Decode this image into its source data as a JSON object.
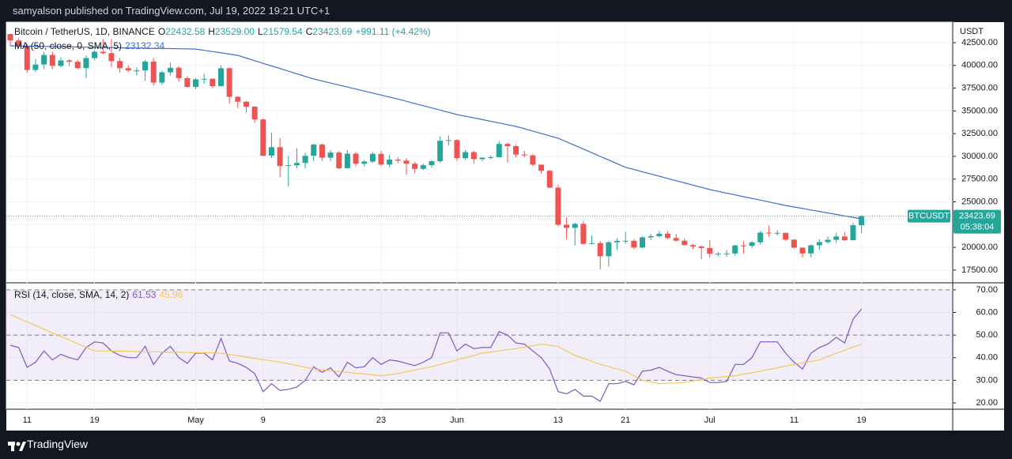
{
  "header": {
    "publisher": "samyalson published on TradingView.com, Jul 19, 2022 19:21 UTC+1"
  },
  "footer": {
    "brand": "TradingView"
  },
  "chart_data": [
    {
      "type": "candlestick",
      "title": "Bitcoin / TetherUS, 1D, BINANCE",
      "ohlc_legend": [
        {
          "label": "O",
          "text": "22432.58"
        },
        {
          "label": "H",
          "text": "23529.00"
        },
        {
          "label": "L",
          "text": "21579.54"
        },
        {
          "label": "C",
          "text": "23423.69"
        }
      ],
      "change": "+991.11 (+4.42%)",
      "currency": "USDT",
      "categories": [
        null,
        null,
        "11",
        null,
        null,
        null,
        null,
        null,
        null,
        null,
        "19",
        null,
        null,
        null,
        null,
        null,
        null,
        null,
        null,
        null,
        null,
        null,
        "May",
        null,
        null,
        null,
        null,
        null,
        null,
        null,
        "9",
        null,
        null,
        null,
        null,
        null,
        null,
        null,
        null,
        null,
        null,
        null,
        null,
        null,
        "23",
        null,
        null,
        null,
        null,
        null,
        null,
        null,
        null,
        "Jun",
        null,
        null,
        null,
        null,
        null,
        null,
        null,
        null,
        null,
        null,
        null,
        "13",
        null,
        null,
        null,
        null,
        null,
        null,
        null,
        "21",
        null,
        null,
        null,
        null,
        null,
        null,
        null,
        null,
        null,
        "Jul",
        null,
        null,
        null,
        null,
        null,
        null,
        null,
        null,
        null,
        "11",
        null,
        null,
        null,
        null,
        null,
        null,
        null,
        "19"
      ],
      "open": [
        43450,
        42750,
        42150,
        39500,
        40100,
        41150,
        39950,
        40550,
        40400,
        39700,
        40800,
        41500,
        41350,
        40480,
        39700,
        39450,
        39450,
        40430,
        38110,
        39240,
        39740,
        38600,
        37630,
        38470,
        38530,
        37720,
        39690,
        36550,
        36010,
        35470,
        34060,
        30080,
        31010,
        28940,
        29030,
        29280,
        30070,
        31300,
        29860,
        30420,
        28700,
        30300,
        29190,
        29430,
        30280,
        29100,
        29650,
        29540,
        29190,
        28630,
        29030,
        29470,
        31720,
        31790,
        29800,
        30470,
        29700,
        29860,
        29910,
        31370,
        31130,
        30200,
        30110,
        29090,
        28420,
        26570,
        22480,
        22140,
        22580,
        20380,
        20470,
        19020,
        20560,
        20710,
        20720,
        19980,
        21100,
        21230,
        21500,
        21030,
        20730,
        20250,
        20100,
        19930,
        19290,
        19300,
        19330,
        20210,
        20170,
        20550,
        21620,
        21590,
        21590,
        20850,
        19960,
        19330,
        20230,
        20580,
        20830,
        21190,
        20780,
        22432.58
      ],
      "high": [
        43500,
        43000,
        42400,
        40700,
        41500,
        41500,
        40900,
        40700,
        40600,
        41100,
        41700,
        42900,
        42900,
        40800,
        40000,
        39800,
        40600,
        40800,
        39400,
        40300,
        39900,
        38800,
        38600,
        39100,
        38600,
        40000,
        39800,
        36600,
        36100,
        35500,
        34200,
        32600,
        32000,
        30000,
        30900,
        30400,
        31400,
        31400,
        30700,
        30600,
        30700,
        30500,
        29600,
        30500,
        30600,
        30200,
        29900,
        29800,
        29400,
        29200,
        29600,
        32200,
        32300,
        31900,
        30700,
        30600,
        29900,
        30100,
        31700,
        31500,
        31300,
        30600,
        30300,
        29100,
        28500,
        26900,
        23300,
        22700,
        22900,
        21300,
        20700,
        20700,
        21000,
        21700,
        20900,
        21200,
        21500,
        21800,
        21800,
        21500,
        21000,
        20400,
        20200,
        20800,
        19500,
        19700,
        20300,
        20700,
        20700,
        21800,
        22400,
        21900,
        21600,
        20900,
        20000,
        20300,
        20900,
        21200,
        21600,
        21700,
        22700,
        23529
      ],
      "low": [
        42100,
        41900,
        39200,
        39250,
        39600,
        39600,
        39800,
        39900,
        39600,
        38600,
        40600,
        41200,
        39800,
        39200,
        39300,
        38900,
        38300,
        37800,
        37900,
        38900,
        38200,
        37600,
        37400,
        38000,
        37500,
        37700,
        35800,
        35300,
        34800,
        33700,
        30000,
        29800,
        27700,
        26700,
        28700,
        28700,
        29500,
        29500,
        29500,
        28600,
        28700,
        28900,
        28900,
        29300,
        28900,
        28800,
        29300,
        28000,
        28200,
        28500,
        28800,
        29300,
        31200,
        29500,
        29600,
        29200,
        29500,
        29700,
        29900,
        29300,
        29900,
        29900,
        28900,
        28100,
        26500,
        22300,
        20900,
        20200,
        20300,
        20300,
        17600,
        17900,
        19700,
        20400,
        19800,
        19900,
        20800,
        21100,
        20900,
        20600,
        20200,
        19800,
        18700,
        18900,
        19000,
        19000,
        19100,
        19300,
        19900,
        20300,
        21200,
        21300,
        20700,
        19900,
        18900,
        18900,
        19700,
        20400,
        20500,
        20700,
        20800,
        21579.54
      ],
      "close": [
        42750,
        42150,
        39500,
        40100,
        41150,
        39950,
        40550,
        40400,
        39700,
        40800,
        41500,
        41350,
        40480,
        39700,
        39450,
        39450,
        40430,
        38110,
        39240,
        39740,
        38600,
        37630,
        38470,
        38530,
        37720,
        39690,
        36550,
        36010,
        35470,
        34060,
        30080,
        31010,
        28940,
        29030,
        29280,
        30070,
        31300,
        29860,
        30420,
        28700,
        30300,
        29190,
        29430,
        30280,
        29100,
        29650,
        29540,
        29190,
        28630,
        29030,
        29470,
        31720,
        31790,
        29800,
        30470,
        29700,
        29860,
        29910,
        31370,
        31130,
        30200,
        30110,
        29090,
        28420,
        26570,
        22480,
        22140,
        22580,
        20380,
        20470,
        19020,
        20560,
        20710,
        20720,
        19980,
        21100,
        21230,
        21500,
        21030,
        20730,
        20250,
        20100,
        19930,
        19290,
        19300,
        19330,
        20210,
        20170,
        20550,
        21620,
        21590,
        21590,
        20850,
        19960,
        19330,
        20230,
        20580,
        20830,
        21190,
        20780,
        22432.58,
        23423.69
      ],
      "up_color": "#26a69a",
      "down_color": "#ef5350",
      "series": [
        {
          "name": "MA (50, close, 0, SMA, 5)",
          "value_label": "23132.34",
          "color": "#3f6fc9",
          "values": [
            42150,
            42130,
            42120,
            42100,
            42090,
            42070,
            42050,
            42040,
            42020,
            42010,
            41990,
            41970,
            41960,
            41940,
            41930,
            41910,
            41890,
            41880,
            41860,
            41850,
            41830,
            41820,
            41800,
            41660,
            41520,
            41380,
            41240,
            41100,
            40810,
            40520,
            40230,
            39940,
            39660,
            39370,
            39080,
            38790,
            38500,
            38280,
            38060,
            37840,
            37620,
            37400,
            37180,
            36960,
            36740,
            36520,
            36300,
            36060,
            35810,
            35570,
            35330,
            35090,
            34840,
            34600,
            34410,
            34230,
            34040,
            33860,
            33670,
            33490,
            33300,
            33040,
            32780,
            32520,
            32260,
            32000,
            31600,
            31200,
            30800,
            30400,
            30000,
            29600,
            29200,
            28800,
            28560,
            28310,
            28070,
            27820,
            27580,
            27330,
            27090,
            26840,
            26600,
            26350,
            26160,
            25960,
            25770,
            25570,
            25380,
            25190,
            24990,
            24800,
            24600,
            24440,
            24270,
            24110,
            23950,
            23780,
            23620,
            23460,
            23300,
            23132.34
          ]
        }
      ],
      "last_price": {
        "symbol": "BTCUSDT",
        "label": "23423.69",
        "countdown": "05:38:04"
      },
      "ylim": [
        16100,
        44760
      ],
      "yticks": [
        {
          "value": 17500,
          "label": "17500.00"
        },
        {
          "value": 20000,
          "label": "20000.00"
        },
        {
          "value": 22500,
          "label": "22500.00"
        },
        {
          "value": 25000,
          "label": "25000.00"
        },
        {
          "value": 27500,
          "label": "27500.00"
        },
        {
          "value": 30000,
          "label": "30000.00"
        },
        {
          "value": 32500,
          "label": "32500.00"
        },
        {
          "value": 35000,
          "label": "35000.00"
        },
        {
          "value": 37500,
          "label": "37500.00"
        },
        {
          "value": 40000,
          "label": "40000.00"
        },
        {
          "value": 42500,
          "label": "42500.00"
        }
      ],
      "grid": true
    },
    {
      "type": "line",
      "title": "RSI (14, close, SMA, 14, 2)",
      "series": [
        {
          "value_label": "61.53",
          "color": "#7e57c2",
          "values": [
            45.5,
            44.5,
            35.7,
            38,
            43,
            39,
            41.5,
            40,
            39,
            44.5,
            47,
            46.5,
            43,
            41,
            40,
            40,
            45,
            37,
            42,
            45,
            40,
            37.5,
            42,
            42,
            39,
            48.5,
            38.5,
            37.5,
            35.7,
            33,
            25,
            28.5,
            25.5,
            26,
            27,
            30,
            36,
            33.5,
            35.5,
            31.5,
            38,
            35.5,
            36,
            40,
            37,
            39,
            38.5,
            37.5,
            36.5,
            38,
            40,
            51,
            51,
            43,
            46,
            44,
            44.5,
            44.5,
            51.5,
            50,
            46.5,
            46,
            43,
            40,
            35,
            25,
            24,
            26,
            23,
            23,
            20.7,
            28.5,
            28.5,
            29.5,
            28,
            34,
            34.5,
            35.7,
            34,
            32.5,
            32,
            31.5,
            31,
            29,
            29,
            29.5,
            37,
            37,
            40,
            47,
            47,
            47,
            42,
            38,
            35,
            42,
            44.5,
            46,
            49,
            46.5,
            57,
            61.53
          ]
        },
        {
          "value_label": "45.96",
          "color": "#f5c65a",
          "values": [
            59,
            57.4,
            55.8,
            54.2,
            52.6,
            51,
            49.4,
            47.8,
            46.2,
            44.6,
            43,
            43,
            42.9,
            42.9,
            42.8,
            42.7,
            42.6,
            42.6,
            42.5,
            42.4,
            42.4,
            42.3,
            42.2,
            42.1,
            42.1,
            42,
            41.4,
            40.9,
            40.3,
            39.7,
            39.1,
            38.6,
            38,
            37.3,
            36.5,
            35.8,
            35,
            34.6,
            34.3,
            33.9,
            33.5,
            33.1,
            32.8,
            32.4,
            32,
            32.5,
            33,
            33.8,
            34.5,
            35.3,
            36,
            37,
            38,
            39,
            40,
            41,
            42,
            42.5,
            43,
            43.5,
            44,
            44.7,
            45.3,
            46,
            45.5,
            45,
            43,
            41,
            39.7,
            38.3,
            37,
            36,
            35,
            34,
            32,
            30,
            29.2,
            28.5,
            28.7,
            28.8,
            29,
            29.7,
            30.3,
            31,
            31.3,
            31.7,
            32,
            32.7,
            33.3,
            34,
            34.8,
            35.5,
            36.3,
            37,
            37.7,
            38.3,
            39,
            40.5,
            42,
            43.3,
            44.7,
            45.96
          ]
        }
      ],
      "bands": {
        "upper": 70,
        "middle": 50,
        "lower": 30
      },
      "ylim": [
        17.2,
        73.1
      ],
      "yticks": [
        {
          "value": 20,
          "label": "20.00"
        },
        {
          "value": 30,
          "label": "30.00"
        },
        {
          "value": 40,
          "label": "40.00"
        },
        {
          "value": 50,
          "label": "50.00"
        },
        {
          "value": 60,
          "label": "60.00"
        },
        {
          "value": 70,
          "label": "70.00"
        }
      ],
      "grid": true
    }
  ]
}
